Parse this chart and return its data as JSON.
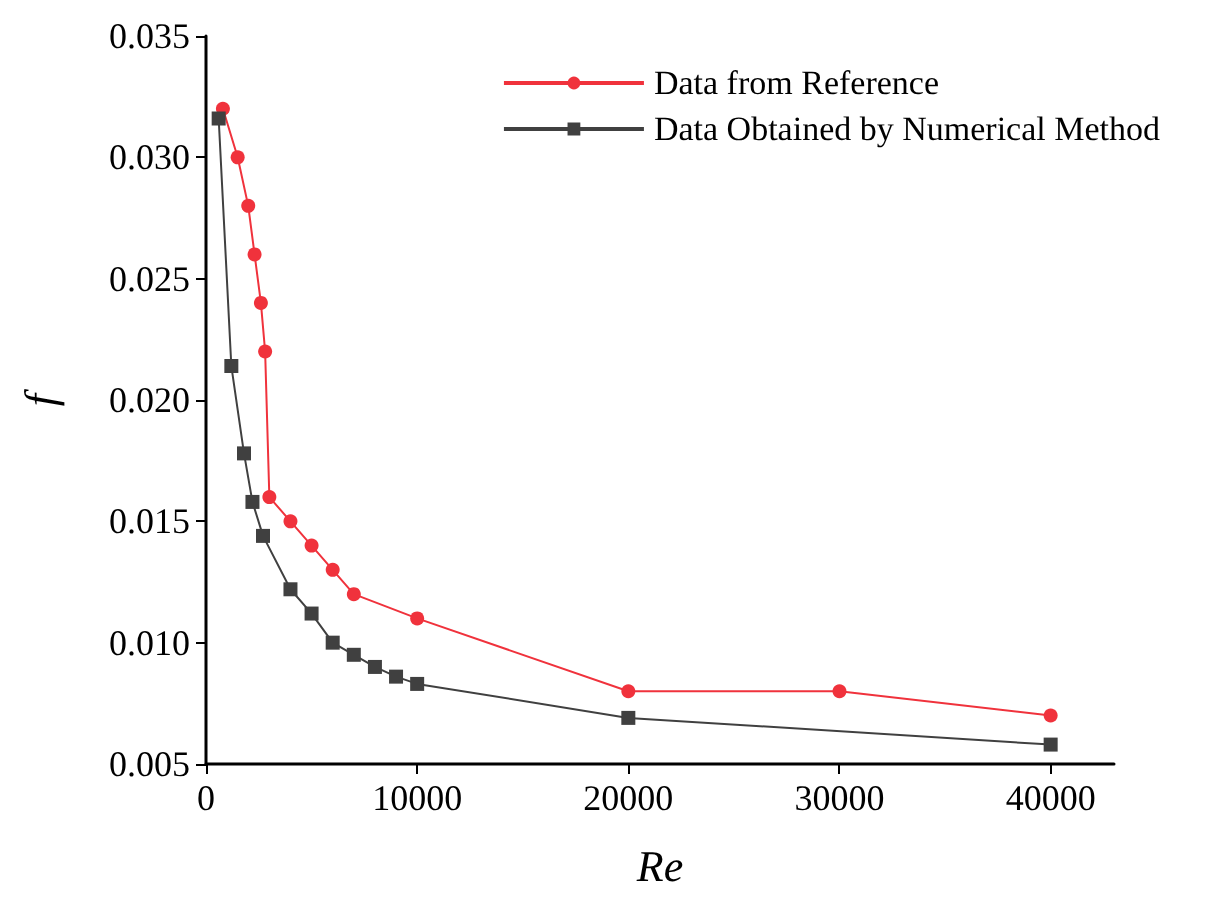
{
  "chart_data": {
    "type": "line",
    "xlabel": "Re",
    "ylabel": "f",
    "xlim": [
      0,
      43000
    ],
    "xticks": [
      0,
      10000,
      20000,
      30000,
      40000
    ],
    "ylim": [
      0.005,
      0.035
    ],
    "yticks": [
      0.005,
      {
        "value": 0.01,
        "label": "0.010"
      },
      0.015,
      {
        "value": 0.02,
        "label": "0.020"
      },
      0.025,
      {
        "value": 0.03,
        "label": "0.030"
      },
      0.035
    ],
    "grid": false,
    "legend": "top right",
    "series": [
      {
        "name": "Data from Reference",
        "color": "#f0323c",
        "marker": "circle",
        "x": [
          800,
          1500,
          2000,
          2300,
          2600,
          2800,
          3000,
          4000,
          5000,
          6000,
          7000,
          10000,
          20000,
          30000,
          40000
        ],
        "values": [
          0.032,
          0.03,
          0.028,
          0.026,
          0.024,
          0.022,
          0.016,
          0.015,
          0.014,
          0.013,
          0.012,
          0.011,
          0.008,
          0.008,
          0.007
        ]
      },
      {
        "name": "Data Obtained by Numerical Method",
        "color": "#404040",
        "marker": "square",
        "x": [
          600,
          1200,
          1800,
          2200,
          2700,
          4000,
          5000,
          6000,
          7000,
          8000,
          9000,
          10000,
          20000,
          40000
        ],
        "values": [
          0.0316,
          0.0214,
          0.0178,
          0.0158,
          0.0144,
          0.0122,
          0.0112,
          0.01,
          0.0095,
          0.009,
          0.0086,
          0.0083,
          0.0069,
          0.0058
        ]
      }
    ]
  }
}
